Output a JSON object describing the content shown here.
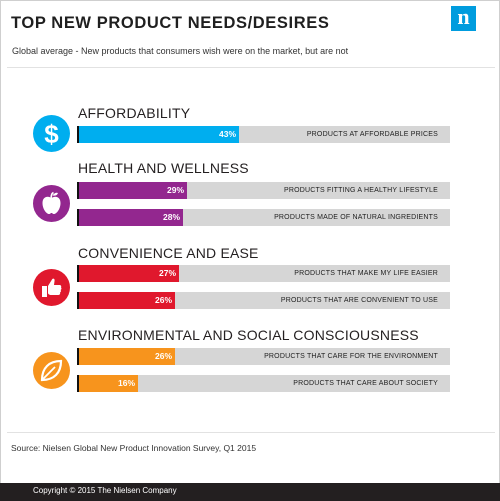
{
  "header": {
    "title": "TOP NEW PRODUCT NEEDS/DESIRES",
    "subtitle": "Global average - New products that consumers wish were on the market, but are not",
    "logo_letter": "n"
  },
  "colors": {
    "affordability": "#00aeef",
    "health": "#93278f",
    "convenience": "#e0182d",
    "environment": "#f7941d",
    "track": "#d6d6d6",
    "logo": "#009cde"
  },
  "chart_data": {
    "type": "bar",
    "orientation": "horizontal",
    "xlim": [
      0,
      100
    ],
    "unit": "%",
    "groups": [
      {
        "name": "AFFORDABILITY",
        "icon": "dollar-icon",
        "color": "#00aeef",
        "bars": [
          {
            "label": "PRODUCTS AT AFFORDABLE PRICES",
            "value": 43,
            "display": "43%"
          }
        ]
      },
      {
        "name": "HEALTH AND WELLNESS",
        "icon": "apple-icon",
        "color": "#93278f",
        "bars": [
          {
            "label": "PRODUCTS FITTING A HEALTHY LIFESTYLE",
            "value": 29,
            "display": "29%"
          },
          {
            "label": "PRODUCTS MADE OF NATURAL INGREDIENTS",
            "value": 28,
            "display": "28%"
          }
        ]
      },
      {
        "name": "CONVENIENCE AND EASE",
        "icon": "thumbs-up-icon",
        "color": "#e0182d",
        "bars": [
          {
            "label": "PRODUCTS THAT MAKE MY LIFE EASIER",
            "value": 27,
            "display": "27%"
          },
          {
            "label": "PRODUCTS THAT ARE CONVENIENT TO USE",
            "value": 26,
            "display": "26%"
          }
        ]
      },
      {
        "name": "ENVIRONMENTAL AND SOCIAL CONSCIOUSNESS",
        "icon": "leaf-icon",
        "color": "#f7941d",
        "bars": [
          {
            "label": "PRODUCTS THAT CARE FOR THE ENVIRONMENT",
            "value": 26,
            "display": "26%"
          },
          {
            "label": "PRODUCTS THAT CARE ABOUT SOCIETY",
            "value": 16,
            "display": "16%"
          }
        ]
      }
    ]
  },
  "source": "Source: Nielsen Global New Product Innovation Survey, Q1 2015",
  "footer": {
    "copyright": "Copyright © 2015 The Nielsen Company"
  }
}
